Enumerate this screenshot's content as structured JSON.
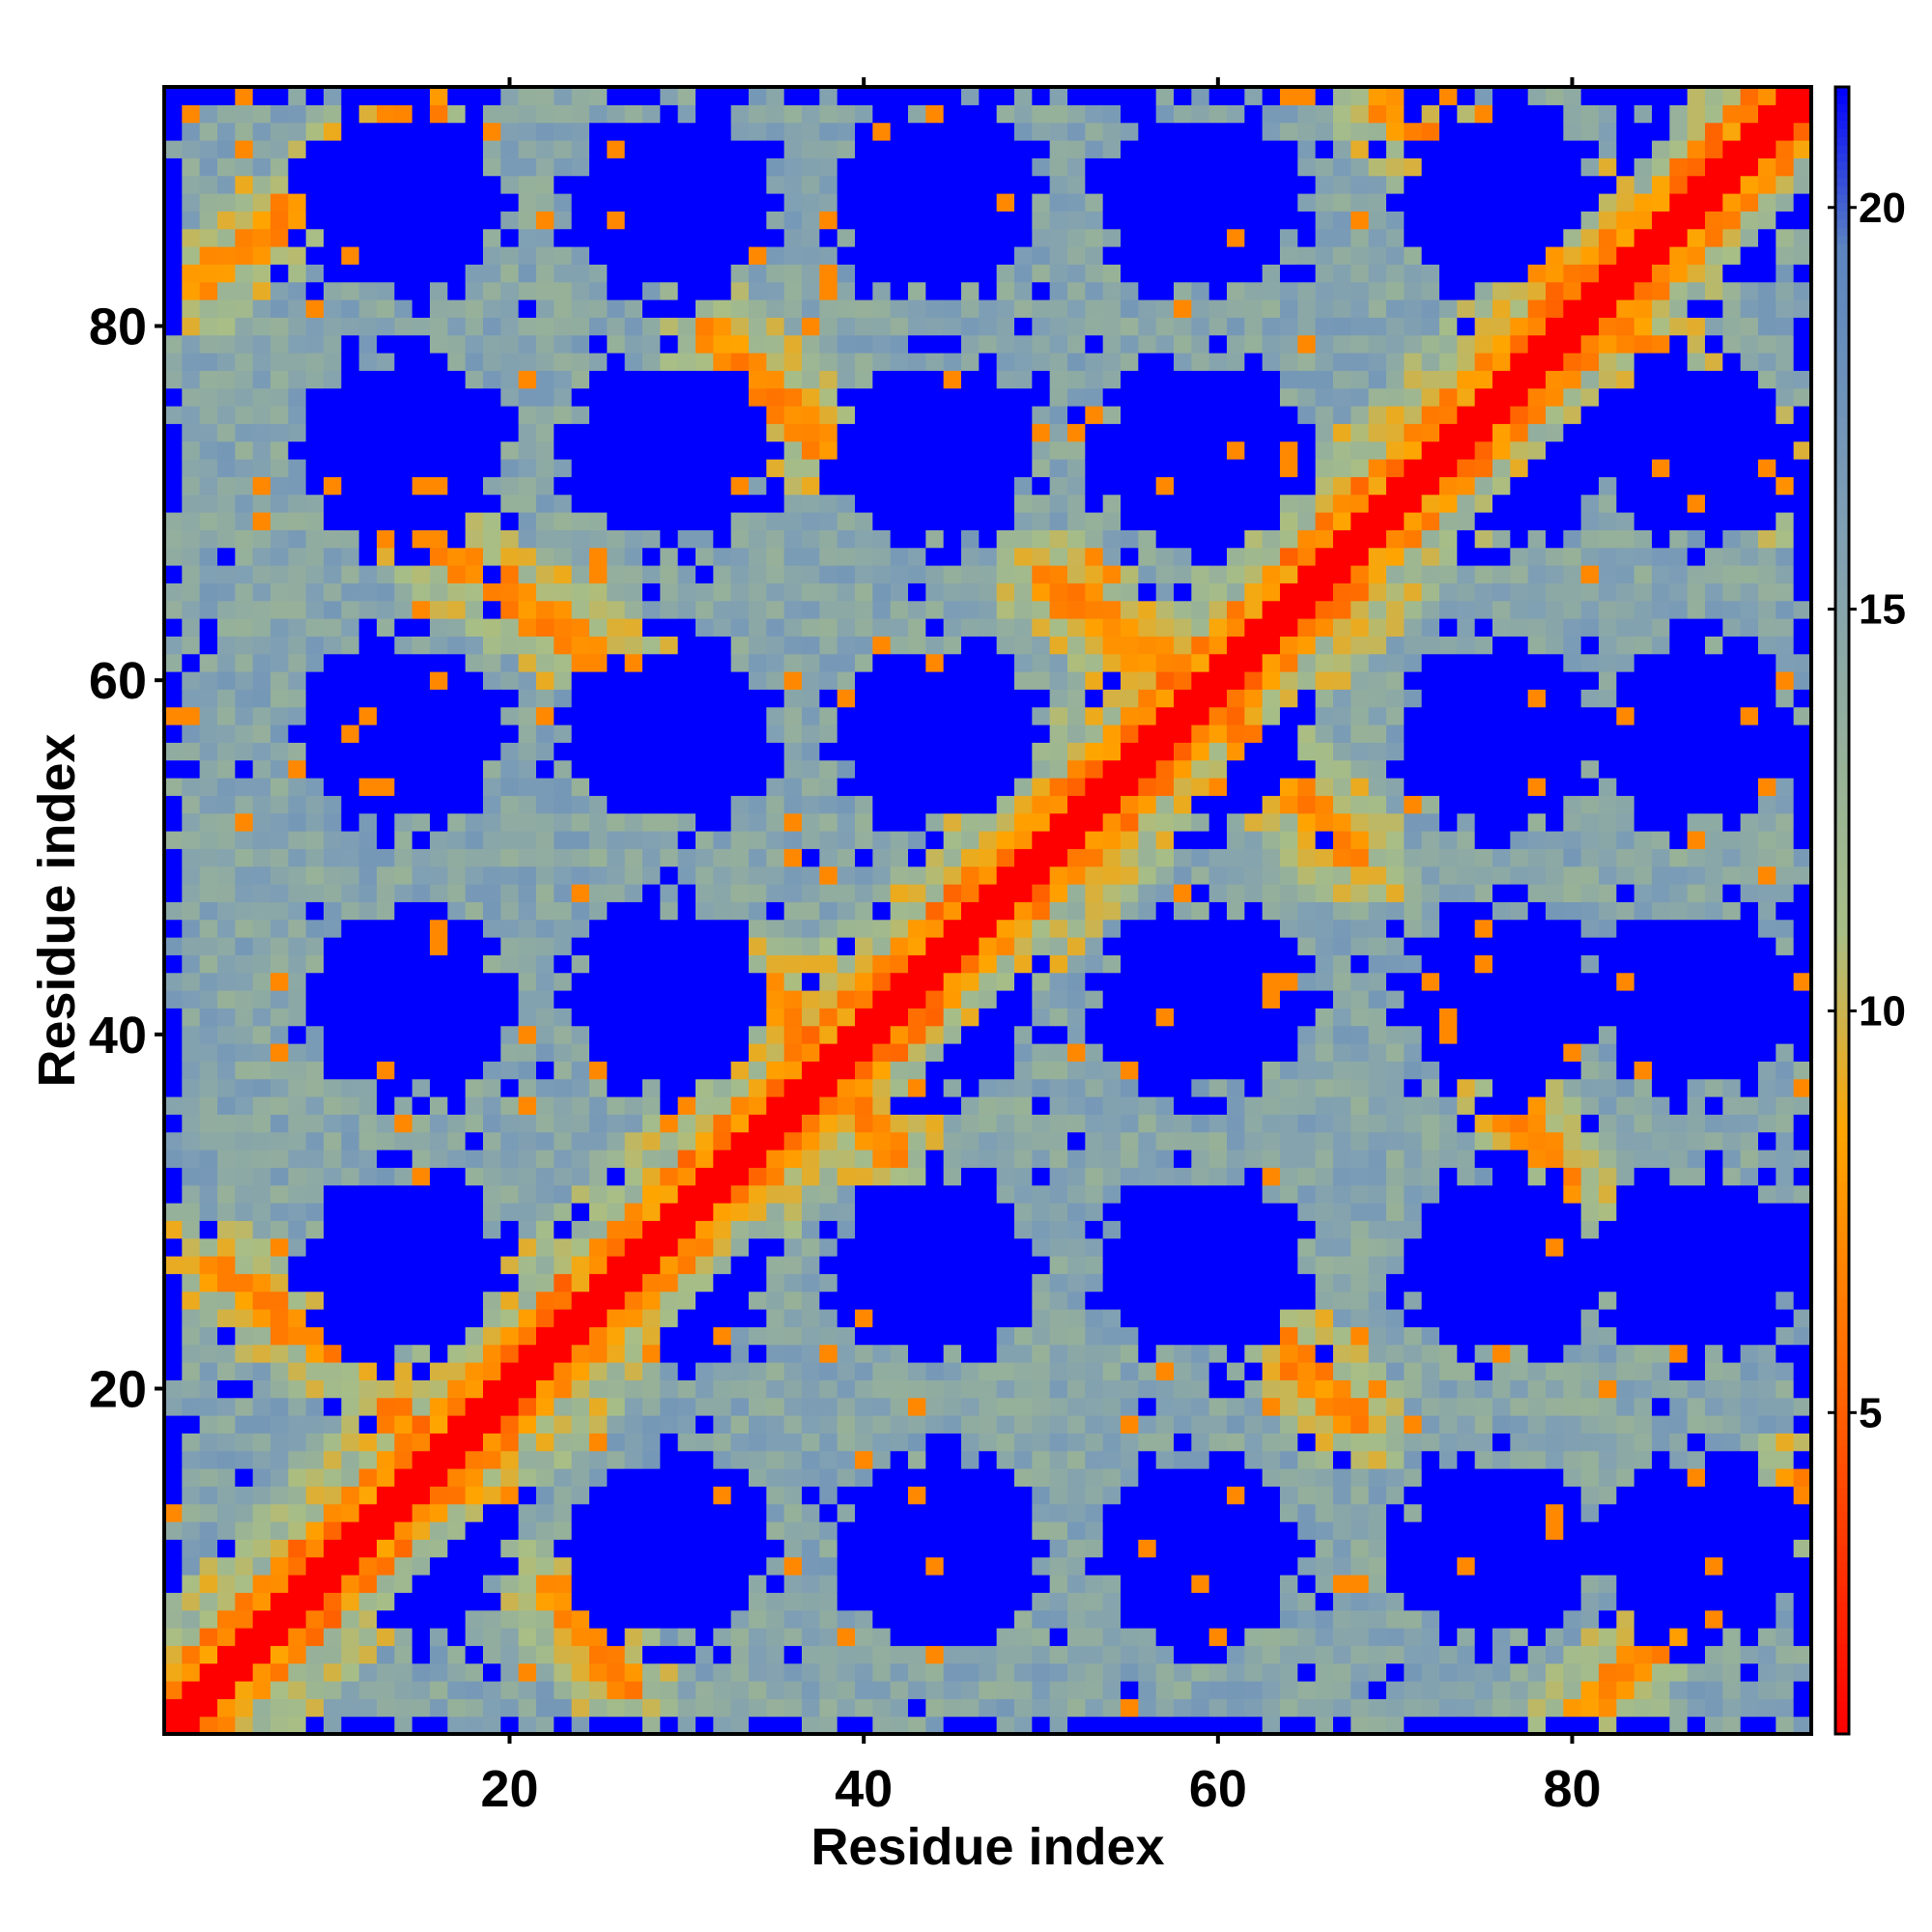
{
  "chart_data": {
    "type": "heatmap",
    "title": "",
    "xlabel": "Residue index",
    "ylabel": "Residue index",
    "n_residues": 93,
    "xlim": [
      1,
      93
    ],
    "ylim": [
      1,
      93
    ],
    "x_ticks": [
      20,
      40,
      60,
      80
    ],
    "y_ticks": [
      20,
      40,
      60,
      80
    ],
    "colorbar": {
      "range": [
        1,
        21.5
      ],
      "ticks": [
        5,
        10,
        15,
        20
      ],
      "placement": "right",
      "colors": [
        {
          "value": 1,
          "color": "#ff0000"
        },
        {
          "value": 5.5,
          "color": "#ff6a00"
        },
        {
          "value": 8.5,
          "color": "#ffa500"
        },
        {
          "value": 11,
          "color": "#a8be86"
        },
        {
          "value": 16,
          "color": "#7f9fb4"
        },
        {
          "value": 19.5,
          "color": "#5c85c0"
        },
        {
          "value": 21.5,
          "color": "#0000ff"
        }
      ]
    },
    "structure": {
      "main_diagonal": {
        "start": [
          1,
          1
        ],
        "end": [
          93,
          93
        ],
        "value": 1
      },
      "contact_bands": [
        {
          "from": [
            2,
            82
          ],
          "to": [
            16,
            93
          ],
          "value": 6
        },
        {
          "from": [
            31,
            80
          ],
          "to": [
            38,
            73
          ],
          "value": 6
        },
        {
          "from": [
            14,
            69
          ],
          "to": [
            30,
            58
          ],
          "value": 6
        },
        {
          "from": [
            50,
            66
          ],
          "to": [
            58,
            60
          ],
          "value": 6
        },
        {
          "from": [
            69,
            93
          ],
          "to": [
            93,
            70
          ],
          "value": 6
        },
        {
          "from": [
            60,
            58
          ],
          "to": [
            68,
            50
          ],
          "value": 6
        },
        {
          "from": [
            34,
            43
          ],
          "to": [
            42,
            33
          ],
          "value": 6
        },
        {
          "from": [
            75,
            39
          ],
          "to": [
            80,
            31
          ],
          "value": 6
        },
        {
          "from": [
            58,
            29
          ],
          "to": [
            68,
            18
          ],
          "value": 6
        },
        {
          "from": [
            3,
            27
          ],
          "to": [
            10,
            22
          ],
          "value": 6
        },
        {
          "from": [
            13,
            19
          ],
          "to": [
            18,
            14
          ],
          "value": 6
        },
        {
          "from": [
            22,
            9
          ],
          "to": [
            27,
            3
          ],
          "value": 6
        },
        {
          "from": [
            80,
            1
          ],
          "to": [
            93,
            15
          ],
          "value": 6
        }
      ],
      "blue_blocks_x": [
        14,
        29,
        44,
        59,
        76,
        87
      ],
      "blue_blocks_y": [
        11,
        27,
        42,
        57,
        73,
        87
      ]
    }
  }
}
